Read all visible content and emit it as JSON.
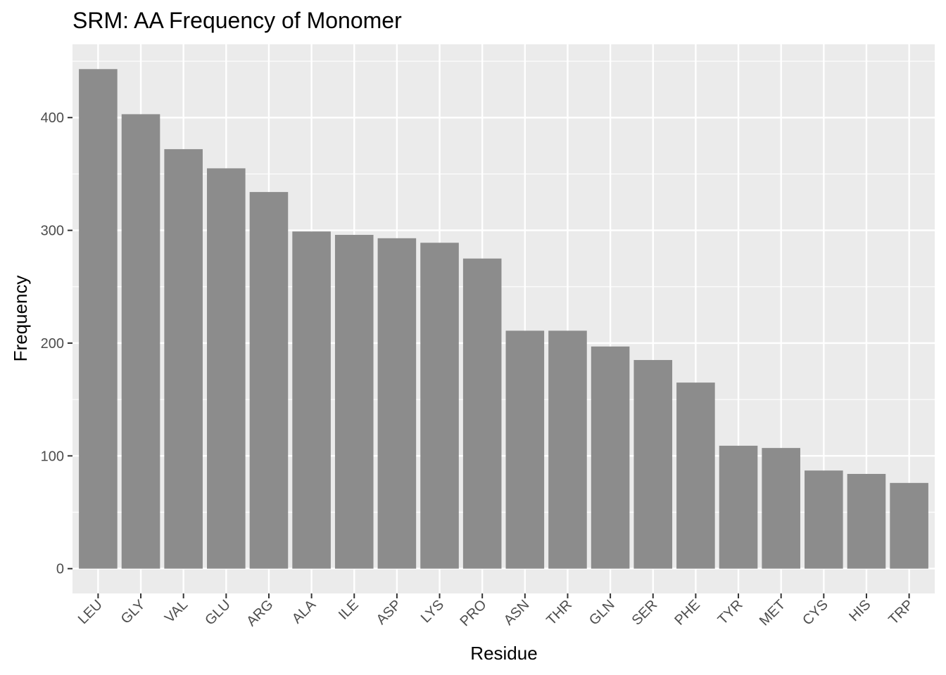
{
  "chart_data": {
    "type": "bar",
    "title": "SRM: AA Frequency of Monomer",
    "xlabel": "Residue",
    "ylabel": "Frequency",
    "categories": [
      "LEU",
      "GLY",
      "VAL",
      "GLU",
      "ARG",
      "ALA",
      "ILE",
      "ASP",
      "LYS",
      "PRO",
      "ASN",
      "THR",
      "GLN",
      "SER",
      "PHE",
      "TYR",
      "MET",
      "CYS",
      "HIS",
      "TRP"
    ],
    "values": [
      443,
      403,
      372,
      355,
      334,
      299,
      296,
      293,
      289,
      275,
      211,
      211,
      197,
      185,
      165,
      109,
      107,
      87,
      84,
      76
    ],
    "ylim": [
      -22,
      465
    ],
    "yticks": [
      0,
      100,
      200,
      300,
      400
    ],
    "grid": true,
    "legend": "none",
    "colors": {
      "panel_background": "#ebebeb",
      "grid_line": "#ffffff",
      "bar_fill": "#8c8c8c",
      "tick_text": "#4d4d4d",
      "tick_mark": "#333333"
    }
  }
}
